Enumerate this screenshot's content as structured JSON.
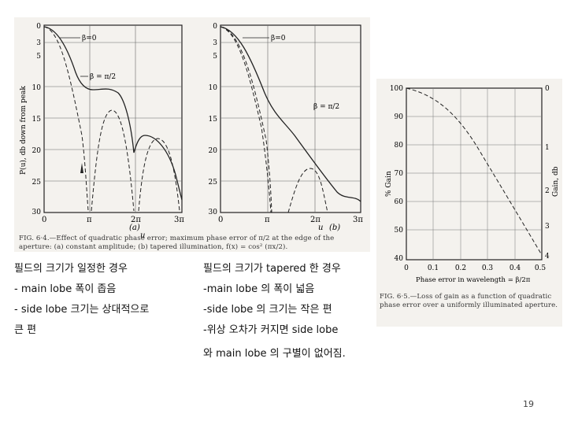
{
  "figure_6_4": {
    "ylabel": "P(u), db down from peak",
    "yticks": [
      "0",
      "3",
      "5",
      "10",
      "15",
      "20",
      "25",
      "30"
    ],
    "xticks": [
      "0",
      "π",
      "2π",
      "3π"
    ],
    "xlabel_a": "u",
    "xlabel_b": "u",
    "panel_a": "(a)",
    "panel_b": "(b)",
    "beta0_label": "β=0",
    "beta_half_label": "β = π/2",
    "caption": "FIG. 6·4.—Effect of quadratic phase error; maximum phase error of π/2 at the edge of the aperture: (a) constant amplitude; (b) tapered illumination, f(x) = cos² (πx/2)."
  },
  "figure_6_5": {
    "ylabel_left": "% Gain",
    "ylabel_right": "Gain, db",
    "yticks_left": [
      "100",
      "90",
      "80",
      "70",
      "60",
      "50",
      "40"
    ],
    "yticks_right": [
      "0",
      "1",
      "2",
      "3",
      "4"
    ],
    "xticks": [
      "0",
      "0.1",
      "0.2",
      "0.3",
      "0.4",
      "0.5"
    ],
    "xlabel": "Phase error in wavelength = β/2π",
    "caption": "FIG. 6·5.—Loss of gain as a function of quadratic phase error over a uniformly illuminated aperture."
  },
  "notes": {
    "left_title": "필드의 크기가 일정한 경우",
    "left_line1": "- main lobe 폭이 좁음",
    "left_line2": "- side lobe 크기는 상대적으로",
    "left_line3": "큰 편",
    "right_title": "필드의 크기가 tapered 한 경우",
    "right_line1": "-main lobe 의 폭이 넓음",
    "right_line2": "-side lobe 의 크기는 작은 편",
    "right_line3": "-위상 오차가 커지면 side lobe",
    "right_line4": "와 main lobe 의 구별이 없어짐."
  },
  "page_number": "19"
}
